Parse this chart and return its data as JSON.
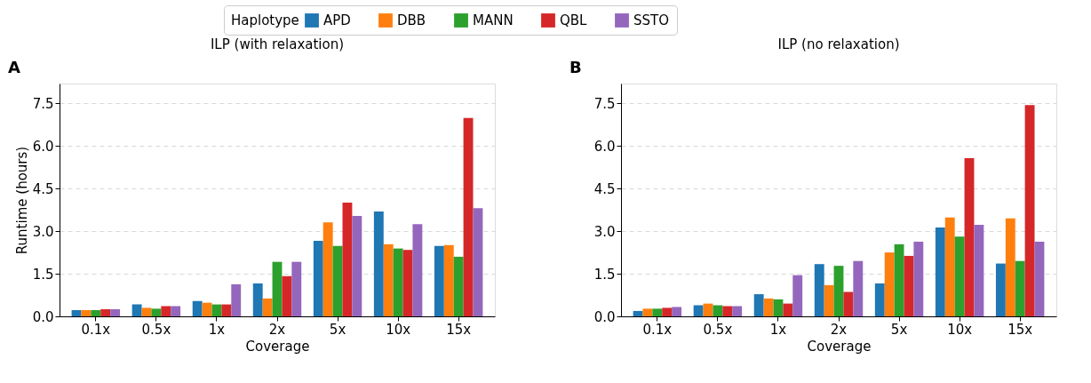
{
  "chart_data": [
    {
      "type": "bar",
      "title": "ILP (with relaxation)",
      "xlabel": "Coverage",
      "ylabel": "Runtime (hours)",
      "legend_title": "Haplotype",
      "legend": "top",
      "grid": "y",
      "annotations": [
        "A"
      ],
      "categories": [
        "0.1x",
        "0.5x",
        "1x",
        "2x",
        "5x",
        "10x",
        "15x"
      ],
      "ylim": [
        0,
        8.2
      ],
      "yticks": [
        {
          "value": 0,
          "label": "0.0"
        },
        1.5,
        {
          "value": 3,
          "label": "3.0"
        },
        4.5,
        {
          "value": 6,
          "label": "6.0"
        },
        7.5
      ],
      "series": [
        {
          "name": "APD",
          "color": "#1f77b4",
          "values": [
            0.22,
            0.42,
            0.54,
            1.16,
            2.66,
            3.69,
            2.48
          ]
        },
        {
          "name": "DBB",
          "color": "#ff7f0e",
          "values": [
            0.22,
            0.3,
            0.48,
            0.63,
            3.31,
            2.54,
            2.51
          ]
        },
        {
          "name": "MANN",
          "color": "#2ca02c",
          "values": [
            0.22,
            0.27,
            0.42,
            1.92,
            2.48,
            2.39,
            2.1
          ]
        },
        {
          "name": "QBL",
          "color": "#d62728",
          "values": [
            0.25,
            0.36,
            0.42,
            1.42,
            4.01,
            2.34,
            6.99
          ]
        },
        {
          "name": "SSTO",
          "color": "#9467bd",
          "values": [
            0.25,
            0.36,
            1.13,
            1.92,
            3.54,
            3.25,
            3.81
          ]
        }
      ]
    },
    {
      "type": "bar",
      "title": "ILP (no relaxation)",
      "xlabel": "Coverage",
      "grid": "y",
      "annotations": [
        "B"
      ],
      "categories": [
        "0.1x",
        "0.5x",
        "1x",
        "2x",
        "5x",
        "10x",
        "15x"
      ],
      "ylim": [
        0,
        8.2
      ],
      "yticks": [
        {
          "value": 0,
          "label": "0.0"
        },
        1.5,
        {
          "value": 3,
          "label": "3.0"
        },
        4.5,
        {
          "value": 6,
          "label": "6.0"
        },
        7.5
      ],
      "series": [
        {
          "name": "APD",
          "color": "#1f77b4",
          "values": [
            0.19,
            0.39,
            0.78,
            1.84,
            1.16,
            3.13,
            1.86
          ]
        },
        {
          "name": "DBB",
          "color": "#ff7f0e",
          "values": [
            0.27,
            0.45,
            0.63,
            1.1,
            2.25,
            3.48,
            3.45
          ]
        },
        {
          "name": "MANN",
          "color": "#2ca02c",
          "values": [
            0.27,
            0.39,
            0.6,
            1.78,
            2.54,
            2.81,
            1.95
          ]
        },
        {
          "name": "QBL",
          "color": "#d62728",
          "values": [
            0.3,
            0.36,
            0.45,
            0.86,
            2.13,
            5.57,
            7.44
          ]
        },
        {
          "name": "SSTO",
          "color": "#9467bd",
          "values": [
            0.33,
            0.36,
            1.45,
            1.95,
            2.63,
            3.22,
            2.63
          ]
        }
      ]
    }
  ]
}
